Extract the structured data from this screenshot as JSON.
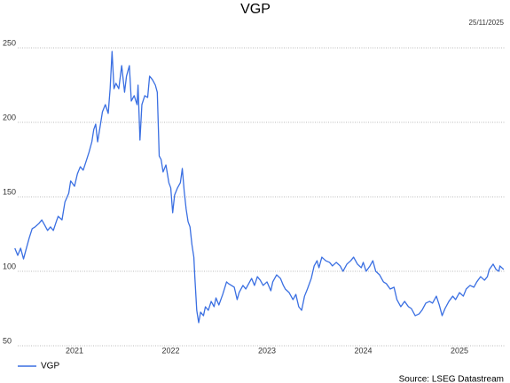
{
  "chart_data": {
    "type": "line",
    "title": "VGP",
    "date": "25/11/2025",
    "source": "Source: LSEG Datastream",
    "x": [
      2020.88,
      2020.91,
      2020.94,
      2020.97,
      2021.0,
      2021.03,
      2021.06,
      2021.09,
      2021.13,
      2021.16,
      2021.19,
      2021.22,
      2021.25,
      2021.28,
      2021.31,
      2021.33,
      2021.37,
      2021.4,
      2021.44,
      2021.46,
      2021.5,
      2021.53,
      2021.56,
      2021.59,
      2021.62,
      2021.65,
      2021.68,
      2021.7,
      2021.72,
      2021.74,
      2021.77,
      2021.79,
      2021.82,
      2021.85,
      2021.87,
      2021.89,
      2021.91,
      2021.93,
      2021.96,
      2021.99,
      2022.02,
      2022.04,
      2022.07,
      2022.09,
      2022.12,
      2022.15,
      2022.16,
      2022.18,
      2022.2,
      2022.23,
      2022.26,
      2022.28,
      2022.31,
      2022.34,
      2022.36,
      2022.38,
      2022.4,
      2022.42,
      2022.45,
      2022.48,
      2022.5,
      2022.52,
      2022.54,
      2022.57,
      2022.6,
      2022.62,
      2022.64,
      2022.66,
      2022.68,
      2022.7,
      2022.72,
      2022.74,
      2022.75,
      2022.77,
      2022.79,
      2022.81,
      2022.84,
      2022.86,
      2022.89,
      2022.92,
      2022.95,
      2022.97,
      2023.0,
      2023.04,
      2023.08,
      2023.1,
      2023.13,
      2023.16,
      2023.19,
      2023.21,
      2023.25,
      2023.28,
      2023.32,
      2023.34,
      2023.37,
      2023.4,
      2023.43,
      2023.46,
      2023.5,
      2023.54,
      2023.56,
      2023.6,
      2023.64,
      2023.67,
      2023.69,
      2023.73,
      2023.77,
      2023.8,
      2023.83,
      2023.86,
      2023.89,
      2023.92,
      2023.96,
      2023.99,
      2024.02,
      2024.04,
      2024.07,
      2024.11,
      2024.15,
      2024.18,
      2024.22,
      2024.26,
      2024.29,
      2024.33,
      2024.37,
      2024.4,
      2024.44,
      2024.48,
      2024.5,
      2024.53,
      2024.57,
      2024.6,
      2024.63,
      2024.67,
      2024.71,
      2024.74,
      2024.78,
      2024.82,
      2024.85,
      2024.89,
      2024.93,
      2024.97,
      2025.0,
      2025.04,
      2025.08,
      2025.11,
      2025.15,
      2025.19,
      2025.22,
      2025.26,
      2025.29,
      2025.32,
      2025.35,
      2025.39,
      2025.43,
      2025.46,
      2025.5,
      2025.54,
      2025.57,
      2025.61,
      2025.65,
      2025.68,
      2025.72,
      2025.76,
      2025.79,
      2025.81,
      2025.85,
      2025.88,
      2025.91,
      2025.92,
      2025.96
    ],
    "series": [
      {
        "name": "VGP",
        "color": "#3a6fe2",
        "values": [
          115.5,
          110.7,
          115.5,
          108.3,
          115.5,
          122.6,
          128.6,
          129.8,
          132.1,
          134.5,
          131.0,
          127.4,
          129.8,
          127.4,
          133.3,
          136.9,
          134.5,
          146.4,
          152.4,
          160.7,
          157.1,
          165.5,
          170.2,
          167.9,
          173.8,
          179.8,
          186.9,
          195.2,
          198.8,
          186.9,
          198.8,
          207.1,
          211.9,
          206.0,
          222.6,
          247.6,
          222.6,
          226.2,
          222.6,
          238.1,
          220.2,
          231.0,
          238.1,
          214.3,
          217.9,
          211.9,
          225.0,
          188.1,
          211.9,
          217.9,
          216.7,
          231.0,
          228.6,
          225.0,
          220.2,
          177.4,
          175.0,
          166.7,
          171.4,
          159.5,
          156.0,
          139.3,
          151.2,
          156.0,
          159.5,
          169.0,
          153.6,
          141.7,
          133.3,
          129.8,
          117.9,
          109.5,
          96.4,
          73.8,
          65.5,
          72.6,
          70.2,
          76.2,
          73.8,
          79.8,
          76.2,
          82.1,
          77.4,
          84.5,
          92.9,
          91.7,
          90.5,
          89.3,
          81.0,
          85.7,
          90.5,
          88.1,
          92.9,
          95.2,
          90.5,
          96.4,
          94.0,
          90.5,
          92.9,
          86.9,
          92.9,
          97.6,
          95.2,
          90.5,
          88.1,
          85.7,
          81.0,
          84.5,
          76.2,
          73.8,
          83.3,
          88.1,
          95.2,
          103.6,
          107.1,
          102.4,
          109.5,
          107.1,
          106.0,
          103.6,
          106.0,
          103.6,
          100.0,
          104.8,
          107.1,
          109.5,
          104.8,
          102.4,
          106.0,
          100.0,
          103.6,
          107.1,
          100.0,
          97.6,
          92.9,
          91.7,
          88.1,
          89.3,
          81.0,
          76.2,
          79.8,
          76.2,
          75.0,
          70.2,
          71.4,
          73.8,
          78.6,
          79.8,
          78.6,
          83.3,
          77.4,
          70.2,
          75.0,
          79.8,
          83.3,
          81.0,
          85.7,
          83.3,
          88.1,
          90.5,
          89.3,
          92.9,
          96.4,
          94.0,
          96.4,
          101.2,
          104.8,
          101.2,
          100.0,
          103.6,
          101.2
        ]
      }
    ],
    "xlim": [
      2020.85,
      2025.98
    ],
    "xticks": [
      {
        "value": 2021.5,
        "label": "2021"
      },
      {
        "value": 2022.5,
        "label": "2022"
      },
      {
        "value": 2023.5,
        "label": "2023"
      },
      {
        "value": 2024.5,
        "label": "2024"
      },
      {
        "value": 2025.5,
        "label": "2025"
      }
    ],
    "ylim": [
      50,
      250
    ],
    "yticks": [
      50,
      100,
      150,
      200,
      250
    ],
    "grid": true,
    "legend": "bottom-left"
  }
}
